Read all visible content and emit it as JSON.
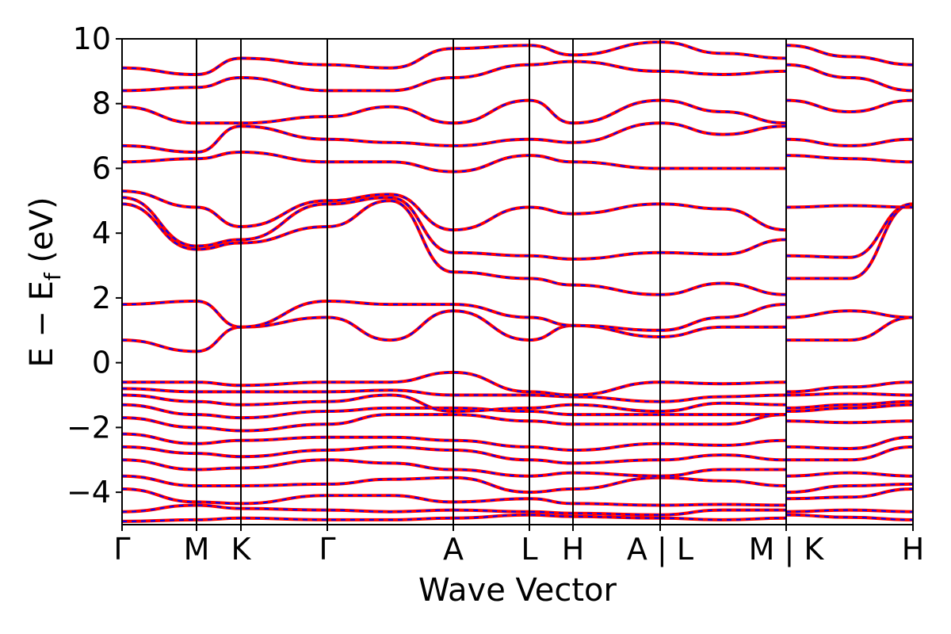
{
  "chart_data": {
    "type": "line",
    "title": "",
    "xlabel": "Wave Vector",
    "ylabel": "E − E_f (eV)",
    "ylabel_parts": {
      "main": "E − E",
      "sub": "f",
      "unit": " (eV)"
    },
    "ylim": [
      -5,
      10
    ],
    "yticks": [
      -4,
      -2,
      0,
      2,
      4,
      6,
      8,
      10
    ],
    "ytick_labels": [
      "−4",
      "−2",
      "0",
      "2",
      "4",
      "6",
      "8",
      "10"
    ],
    "segments": [
      {
        "labels": [
          "Γ",
          "M",
          "K",
          "Γ",
          "A",
          "L",
          "H",
          "A"
        ],
        "length": 4.37
      },
      {
        "labels": [
          "L",
          "M"
        ],
        "length": 1.0
      },
      {
        "labels": [
          "K",
          "H"
        ],
        "length": 1.0
      }
    ],
    "xtick_labels": [
      "Γ",
      "M",
      "K",
      "Γ",
      "A",
      "L",
      "H",
      "A | L",
      "M | K",
      "H"
    ],
    "series": [
      {
        "color": "#ff0000",
        "style": "solid"
      },
      {
        "color": "#0000ff",
        "style": "dashed"
      }
    ],
    "bands_gamma_M_K_Gamma_A_L_H_A": [
      [
        -4.9,
        -4.85,
        -4.8,
        -4.85,
        -4.85,
        -4.8,
        -4.7,
        -4.75,
        -4.8
      ],
      [
        -4.6,
        -4.4,
        -4.5,
        -4.55,
        -4.6,
        -4.55,
        -4.6,
        -4.65,
        -4.7
      ],
      [
        -3.9,
        -4.3,
        -4.35,
        -4.1,
        -4.1,
        -4.3,
        -4.2,
        -4.35,
        -4.4
      ],
      [
        -3.5,
        -3.8,
        -3.8,
        -3.75,
        -3.6,
        -3.55,
        -4.0,
        -3.9,
        -3.55
      ],
      [
        -3.0,
        -3.3,
        -3.25,
        -3.0,
        -3.1,
        -3.3,
        -3.5,
        -3.4,
        -3.5
      ],
      [
        -2.6,
        -2.8,
        -2.9,
        -2.7,
        -2.6,
        -2.7,
        -3.0,
        -3.1,
        -3.0
      ],
      [
        -2.2,
        -2.5,
        -2.4,
        -2.3,
        -2.3,
        -2.4,
        -2.6,
        -2.7,
        -2.5
      ],
      [
        -1.7,
        -2.0,
        -2.1,
        -1.9,
        -1.6,
        -1.6,
        -1.8,
        -1.9,
        -1.9
      ],
      [
        -1.3,
        -1.6,
        -1.7,
        -1.5,
        -1.4,
        -1.4,
        -1.5,
        -1.6,
        -1.6
      ],
      [
        -1.0,
        -1.2,
        -1.3,
        -1.2,
        -1.0,
        -1.5,
        -1.4,
        -1.3,
        -1.5
      ],
      [
        -0.8,
        -0.9,
        -0.9,
        -0.9,
        -0.85,
        -1.0,
        -1.0,
        -1.05,
        -1.2
      ],
      [
        -0.6,
        -0.6,
        -0.7,
        -0.6,
        -0.6,
        -0.3,
        -0.9,
        -1.0,
        -0.6
      ],
      [
        0.7,
        0.35,
        1.1,
        1.4,
        0.7,
        1.6,
        0.7,
        1.15,
        0.8
      ],
      [
        1.8,
        1.9,
        1.1,
        1.9,
        1.8,
        1.8,
        1.4,
        1.15,
        1.0
      ],
      [
        4.9,
        3.5,
        3.7,
        4.2,
        5.0,
        2.8,
        2.6,
        2.4,
        2.1
      ],
      [
        5.1,
        3.6,
        3.8,
        4.9,
        5.1,
        3.4,
        3.3,
        3.2,
        3.4
      ],
      [
        5.3,
        4.8,
        4.2,
        5.0,
        5.2,
        4.1,
        4.8,
        4.6,
        4.9
      ],
      [
        6.2,
        6.3,
        6.5,
        6.2,
        6.2,
        5.9,
        6.4,
        6.2,
        6.0
      ],
      [
        6.7,
        6.5,
        7.3,
        6.9,
        6.8,
        6.7,
        6.9,
        6.8,
        7.4
      ],
      [
        7.9,
        7.4,
        7.4,
        7.6,
        7.9,
        7.4,
        8.1,
        7.4,
        8.1
      ],
      [
        8.4,
        8.5,
        8.8,
        8.4,
        8.4,
        8.8,
        9.2,
        9.3,
        9.0
      ],
      [
        9.1,
        8.9,
        9.4,
        9.2,
        9.1,
        9.7,
        9.8,
        9.5,
        9.9
      ]
    ],
    "band_count_note": "",
    "legend": "none",
    "grid": false
  }
}
